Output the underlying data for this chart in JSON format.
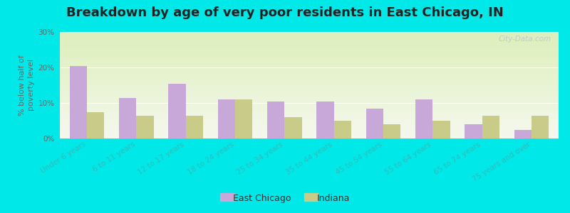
{
  "title": "Breakdown by age of very poor residents in East Chicago, IN",
  "ylabel": "% below half of\npoverty level",
  "categories": [
    "Under 6 years",
    "6 to 11 years",
    "12 to 17 years",
    "18 to 24 years",
    "25 to 34 years",
    "35 to 44 years",
    "45 to 54 years",
    "55 to 64 years",
    "65 to 74 years",
    "75 years and over"
  ],
  "east_chicago": [
    20.5,
    11.5,
    15.5,
    11.0,
    10.5,
    10.5,
    8.5,
    11.0,
    4.0,
    2.5
  ],
  "indiana": [
    7.5,
    6.5,
    6.5,
    11.0,
    6.0,
    5.0,
    4.0,
    5.0,
    6.5,
    6.5
  ],
  "ec_color": "#c8a8d8",
  "in_color": "#c8cc88",
  "bg_outer": "#00e8e8",
  "bg_plot_top": "#ddeebb",
  "bg_plot_bottom": "#f5f8ee",
  "ylim": [
    0,
    30
  ],
  "yticks": [
    0,
    10,
    20,
    30
  ],
  "ytick_labels": [
    "0%",
    "10%",
    "20%",
    "30%"
  ],
  "title_fontsize": 13,
  "axis_fontsize": 8,
  "tick_fontsize": 7.5,
  "legend_fontsize": 9,
  "bar_width": 0.35,
  "watermark": "City-Data.com",
  "xtick_color": "#33bbbb",
  "ytick_color": "#666666"
}
